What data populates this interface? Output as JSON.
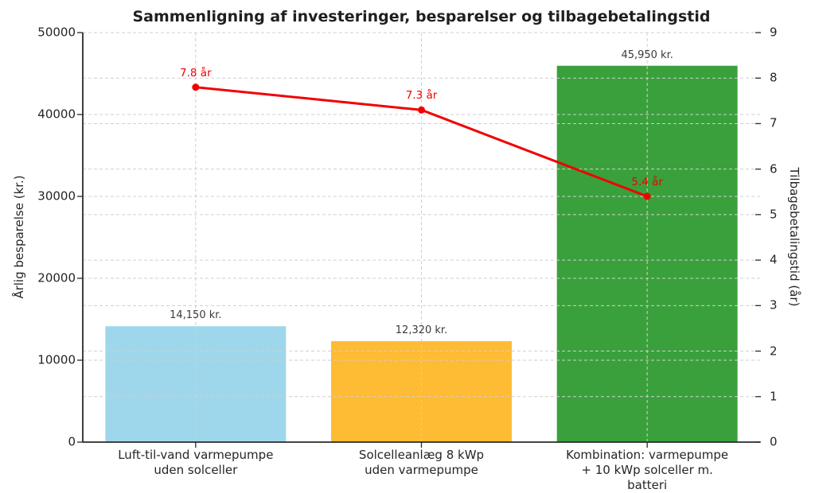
{
  "chart_data": {
    "type": "bar",
    "title": "Sammenligning af investeringer, besparelser og tilbagebetalingstid",
    "categories": [
      "Luft-til-vand varmepumpe\nuden solceller",
      "Solcelleanlæg 8 kWp\nuden varmepumpe",
      "Kombination: varmepumpe\n+ 10 kWp solceller m. batteri"
    ],
    "series": [
      {
        "name": "Årlig besparelse",
        "type": "bar",
        "axis": "left",
        "values": [
          14150,
          12320,
          45950
        ],
        "value_labels": [
          "14,150 kr.",
          "12,320 kr.",
          "45,950 kr."
        ],
        "bar_colors": [
          "#9ed7eb",
          "#febb34",
          "#3aa03c"
        ]
      },
      {
        "name": "Tilbagebetalingstid",
        "type": "line",
        "axis": "right",
        "values": [
          7.8,
          7.3,
          5.4
        ],
        "point_labels": [
          "7.8 år",
          "7.3 år",
          "5.4 år"
        ],
        "color": "#f20000",
        "marker": "circle"
      }
    ],
    "left_axis": {
      "label": "Årlig besparelse (kr.)",
      "min": 0,
      "max": 50000,
      "tick_labels": [
        "0",
        "10000",
        "20000",
        "30000",
        "40000",
        "50000"
      ],
      "tick_values": [
        0,
        10000,
        20000,
        30000,
        40000,
        50000
      ]
    },
    "right_axis": {
      "label": "Tilbagebetalingstid (år)",
      "min": 0,
      "max": 9,
      "tick_labels": [
        "0",
        "1",
        "2",
        "3",
        "4",
        "5",
        "6",
        "7",
        "8",
        "9"
      ],
      "tick_values": [
        0,
        1,
        2,
        3,
        4,
        5,
        6,
        7,
        8,
        9
      ]
    },
    "grid": {
      "visible": true,
      "line_style": "dashed",
      "color": "#cfcfcf"
    },
    "style": {
      "text_color": "#262626",
      "spine_color": "#2a2a2a",
      "bar_label_color": "#3a3a3a",
      "line_color": "#f20000"
    },
    "layout": {
      "grid_above_bars": true,
      "legend": "none"
    }
  }
}
